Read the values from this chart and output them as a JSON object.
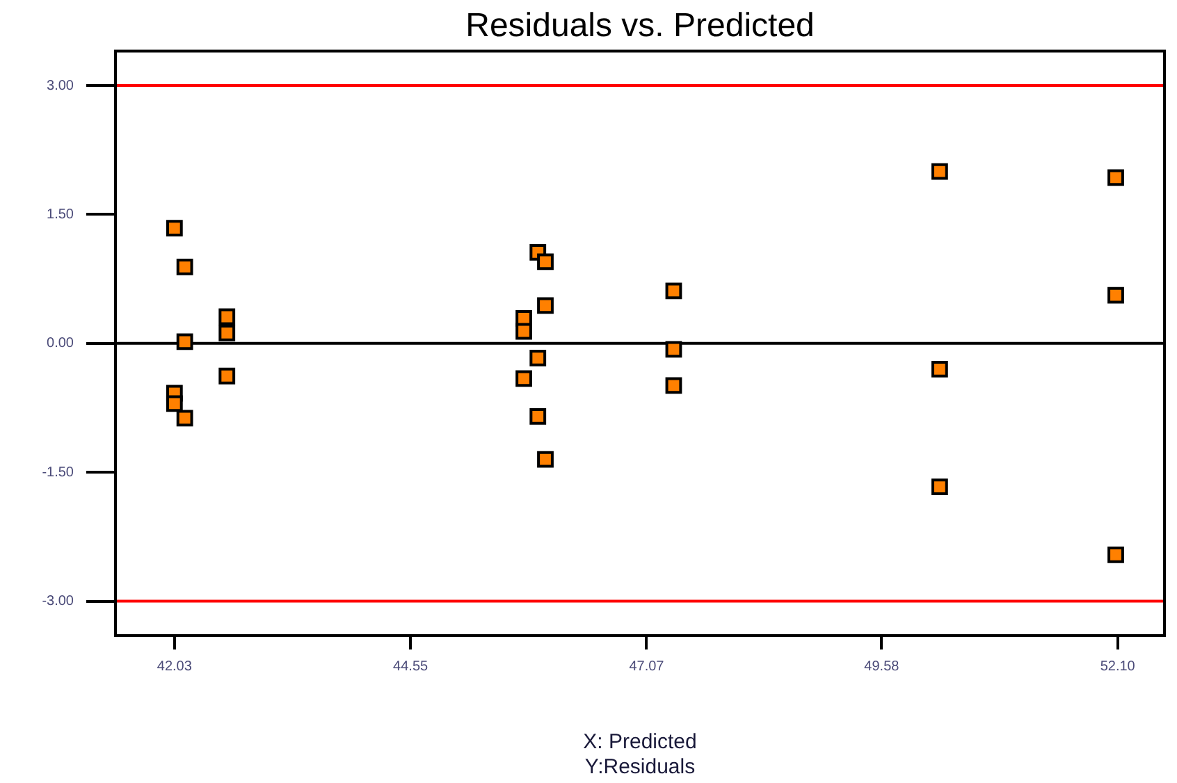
{
  "chart_data": {
    "type": "scatter",
    "title": "Residuals vs. Predicted",
    "xlabel": "X: Predicted",
    "annotations": [
      "Y:Residuals"
    ],
    "x": [
      42.03,
      42.14,
      42.14,
      42.59,
      42.59,
      42.59,
      42.03,
      42.03,
      42.14,
      45.91,
      45.99,
      45.99,
      45.76,
      45.76,
      45.91,
      45.76,
      45.91,
      45.99,
      47.36,
      47.36,
      47.36,
      50.2,
      50.2,
      50.2,
      52.08,
      52.08,
      52.08
    ],
    "values": [
      1.34,
      0.89,
      0.02,
      0.31,
      0.12,
      -0.38,
      -0.58,
      -0.7,
      -0.87,
      1.06,
      0.95,
      0.44,
      0.29,
      0.14,
      -0.17,
      -0.41,
      -0.85,
      -1.35,
      0.61,
      -0.07,
      -0.49,
      2.0,
      -0.3,
      -1.67,
      1.93,
      0.56,
      -2.46
    ],
    "color": "#ff8000",
    "marker": "square",
    "xlim": [
      41.4,
      52.6
    ],
    "xticks": [
      42.03,
      44.55,
      47.07,
      49.58,
      {
        "value": 52.1,
        "label": "52.10"
      }
    ],
    "ylim": [
      -3.4,
      3.4
    ],
    "yticks": [
      {
        "value": 3,
        "label": "3.00"
      },
      {
        "value": 1.5,
        "label": "1.50"
      },
      {
        "value": 0,
        "label": "0.00"
      },
      {
        "value": -1.5,
        "label": "-1.50"
      },
      {
        "value": -3,
        "label": "-3.00"
      }
    ],
    "ref_lines": [
      {
        "axis": "y",
        "value": 3,
        "color": "#ff0000"
      },
      {
        "axis": "y",
        "value": 0,
        "color": "#000000"
      },
      {
        "axis": "y",
        "value": -3,
        "color": "#ff0000"
      }
    ]
  }
}
